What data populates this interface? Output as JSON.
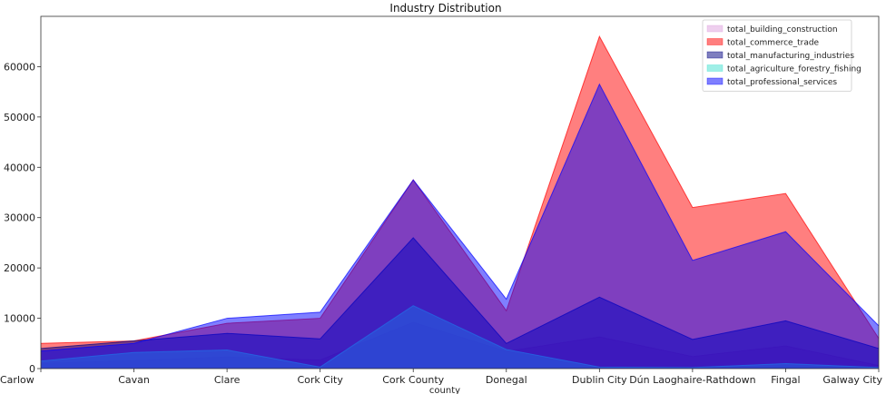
{
  "chart_data": {
    "type": "area",
    "title": "Industry Distribution",
    "xlabel": "county",
    "ylabel": "",
    "ylim": [
      0,
      70000
    ],
    "yticks": [
      0,
      10000,
      20000,
      30000,
      40000,
      50000,
      60000
    ],
    "categories": [
      "Carlow",
      "Cavan",
      "Clare",
      "Cork City",
      "Cork County",
      "Donegal",
      "Dublin City",
      "Dún Laoghaire-Rathdown",
      "Fingal",
      "Galway City"
    ],
    "legend_position": "top-right",
    "grid": false,
    "series": [
      {
        "name": "total_building_construction",
        "color": "#dda0dd",
        "values": [
          1000,
          1600,
          2300,
          1700,
          9200,
          3400,
          6300,
          2400,
          4500,
          600
        ]
      },
      {
        "name": "total_commerce_trade",
        "color": "#ff0000",
        "values": [
          5000,
          5500,
          9000,
          10000,
          37500,
          11500,
          66000,
          32000,
          34800,
          6000
        ]
      },
      {
        "name": "total_manufacturing_industries",
        "color": "#000080",
        "values": [
          4000,
          5500,
          7000,
          5900,
          26000,
          5000,
          14200,
          5800,
          9500,
          4000
        ]
      },
      {
        "name": "total_agriculture_forestry_fishing",
        "color": "#40e0d0",
        "values": [
          1500,
          3200,
          3700,
          300,
          12500,
          3800,
          300,
          200,
          1000,
          200
        ]
      },
      {
        "name": "total_professional_services",
        "color": "#0000ff",
        "values": [
          3500,
          5000,
          10000,
          11200,
          37500,
          13800,
          56500,
          21500,
          27200,
          8500
        ]
      }
    ]
  }
}
